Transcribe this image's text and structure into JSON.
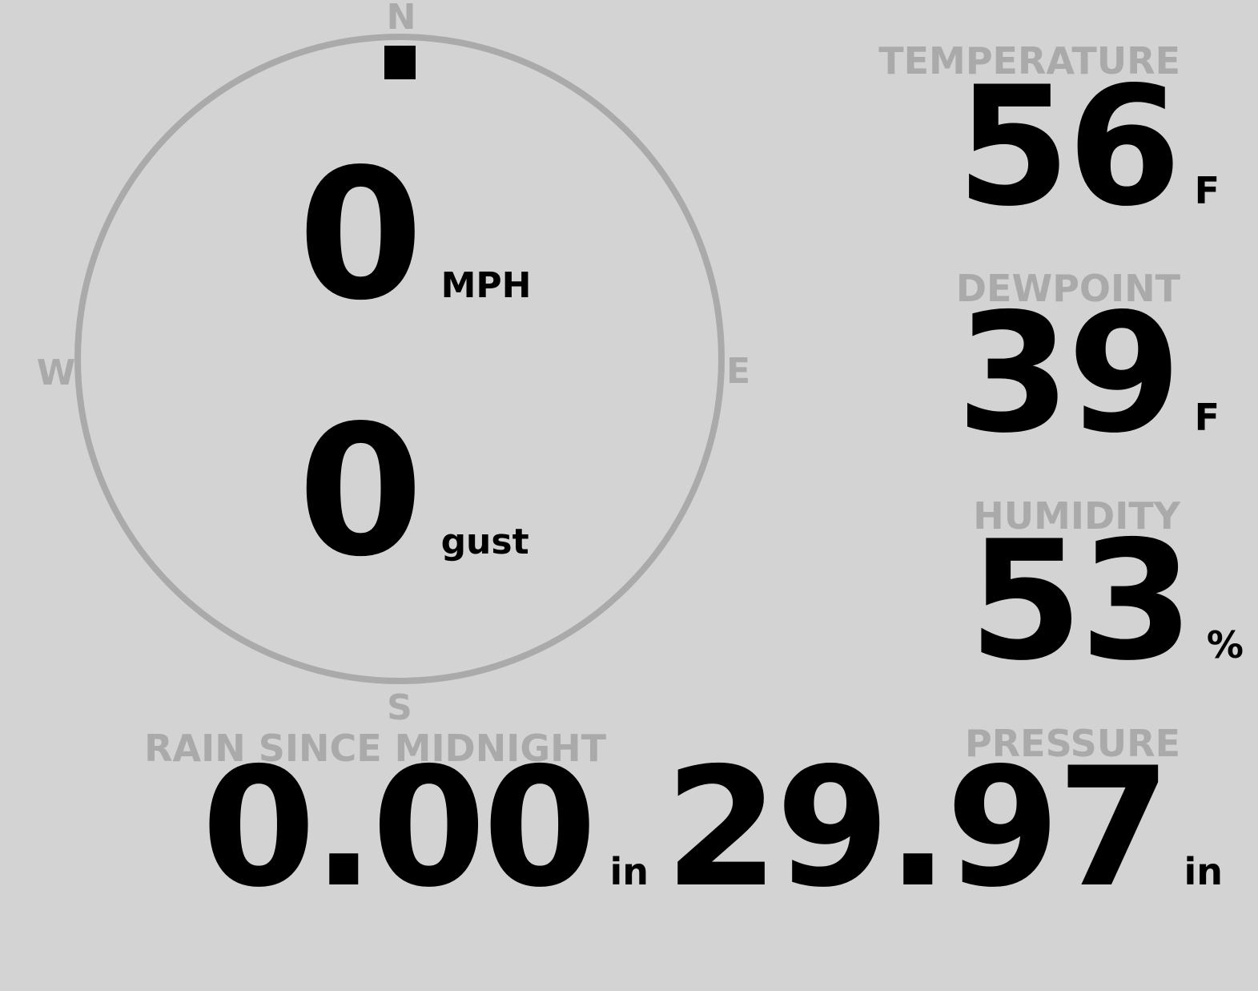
{
  "colors": {
    "background": "#d3d3d3",
    "label": "#aaaaaa",
    "value": "#000000"
  },
  "wind": {
    "compass": {
      "north": "N",
      "east": "E",
      "south": "S",
      "west": "W"
    },
    "direction_deg": 0,
    "speed": "0",
    "speed_unit": "MPH",
    "gust": "0",
    "gust_unit": "gust"
  },
  "temperature": {
    "label": "TEMPERATURE",
    "value": "56",
    "unit": "F"
  },
  "dewpoint": {
    "label": "DEWPOINT",
    "value": "39",
    "unit": "F"
  },
  "humidity": {
    "label": "HUMIDITY",
    "value": "53",
    "unit": "%"
  },
  "pressure": {
    "label": "PRESSURE",
    "value": "29.97",
    "unit": "in"
  },
  "rain": {
    "label": "RAIN SINCE MIDNIGHT",
    "value": "0.00",
    "unit": "in"
  }
}
